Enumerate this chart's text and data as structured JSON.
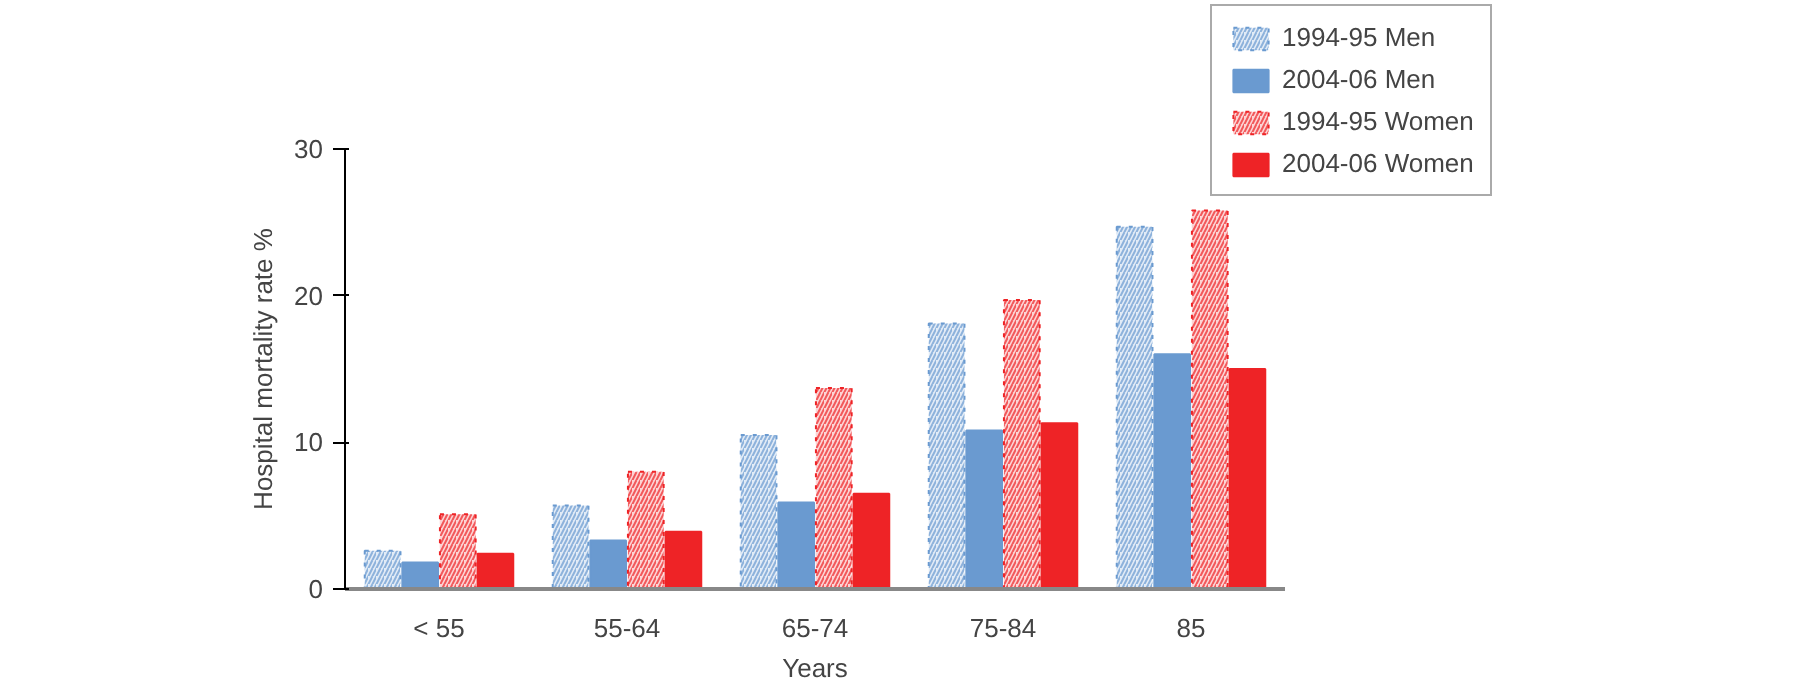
{
  "chart_data": {
    "type": "bar",
    "xlabel": "Years",
    "ylabel": "Hospital mortality rate %",
    "categories": [
      "< 55",
      "55-64",
      "65-74",
      "75-84",
      "85"
    ],
    "series": [
      {
        "name": "1994-95 Men",
        "color": "#6a9ad0",
        "line_style": "dotted",
        "values": [
          2.6,
          5.7,
          10.5,
          18.1,
          24.7
        ]
      },
      {
        "name": "2004-06 Men",
        "color": "#6a9ad0",
        "values": [
          1.8,
          3.3,
          5.9,
          10.8,
          16.0
        ]
      },
      {
        "name": "1994-95 Women",
        "color": "#ee2326",
        "line_style": "dotted",
        "values": [
          5.1,
          8.0,
          13.7,
          19.7,
          25.8
        ]
      },
      {
        "name": "2004-06 Women",
        "color": "#ee2326",
        "values": [
          2.4,
          3.9,
          6.5,
          11.3,
          15.0
        ]
      }
    ],
    "ylim": [
      0,
      30
    ],
    "yticks": [
      0,
      10,
      20,
      30
    ],
    "grid": false,
    "legend": "top right"
  }
}
